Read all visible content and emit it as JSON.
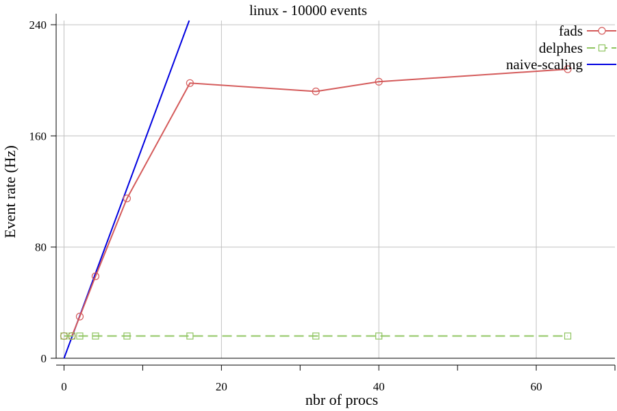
{
  "chart_data": {
    "type": "line",
    "title": "linux - 10000 events",
    "xlabel": "nbr of procs",
    "ylabel": "Event rate (Hz)",
    "xlim": [
      -1,
      70
    ],
    "ylim": [
      0,
      243
    ],
    "xticks": [
      0,
      20,
      40,
      60
    ],
    "xticks_minor": [
      10,
      30,
      50,
      70
    ],
    "yticks": [
      0,
      80,
      160,
      240
    ],
    "grid": true,
    "legend_position": "top-right",
    "series": [
      {
        "name": "fads",
        "color": "#d45a5a",
        "style": "solid",
        "marker": "circle",
        "x": [
          0,
          1,
          2,
          4,
          8,
          16,
          32,
          40,
          64
        ],
        "y": [
          16,
          16,
          30,
          59,
          115,
          198,
          192,
          199,
          208
        ]
      },
      {
        "name": "delphes",
        "color": "#8fc460",
        "style": "dashed",
        "marker": "square",
        "x": [
          0,
          1,
          2,
          4,
          8,
          16,
          32,
          40,
          64
        ],
        "y": [
          16,
          16,
          16,
          16,
          16,
          16,
          16,
          16,
          16
        ]
      },
      {
        "name": "naive-scaling",
        "color": "#0000e0",
        "style": "solid",
        "marker": "none",
        "x": [
          0,
          16.3
        ],
        "y": [
          0,
          249
        ]
      }
    ]
  }
}
